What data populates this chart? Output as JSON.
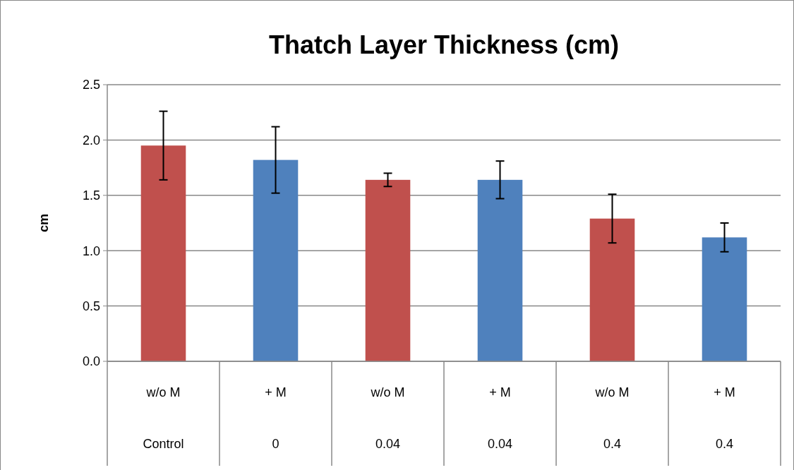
{
  "chart_data": {
    "type": "bar",
    "title": "Thatch Layer Thickness (cm)",
    "ylabel": "cm",
    "categories": [
      "w/o M\nControl",
      "+ M\n0",
      "w/o M\n0.04",
      "+ M\n0.04",
      "w/o M\n0.4",
      "+ M\n0.4"
    ],
    "values": [
      1.95,
      1.82,
      1.64,
      1.64,
      1.29,
      1.12
    ],
    "errors": [
      0.31,
      0.3,
      0.06,
      0.17,
      0.22,
      0.13
    ],
    "colors": [
      "#c0504d",
      "#4f81bd",
      "#c0504d",
      "#4f81bd",
      "#c0504d",
      "#4f81bd"
    ],
    "ylim": [
      0,
      2.5
    ],
    "yticks": [
      {
        "value": 0,
        "label": "0.0"
      },
      0.5,
      {
        "value": 1,
        "label": "1.0"
      },
      1.5,
      {
        "value": 2,
        "label": "2.0"
      },
      2.5
    ],
    "grid": "y"
  }
}
